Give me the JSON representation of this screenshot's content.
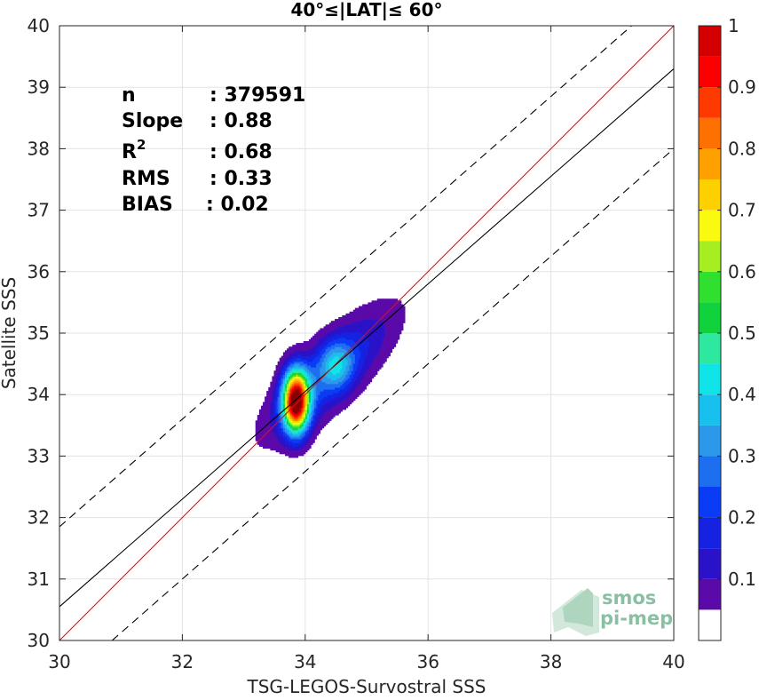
{
  "chart_data": {
    "type": "heatmap",
    "title": "40°≤|LAT|≤ 60°",
    "xlabel": "TSG-LEGOS-Survostral SSS",
    "ylabel": "Satellite SSS",
    "xlim": [
      30,
      40
    ],
    "ylim": [
      30,
      40
    ],
    "x_ticks": [
      "30",
      "32",
      "34",
      "36",
      "38",
      "40"
    ],
    "y_ticks": [
      "30",
      "31",
      "32",
      "33",
      "34",
      "35",
      "36",
      "37",
      "38",
      "39",
      "40"
    ],
    "grid": true,
    "stats": [
      {
        "label": "n",
        "value": ": 379591"
      },
      {
        "label": "Slope",
        "value": ": 0.88"
      },
      {
        "label": "R",
        "sup": "2",
        "value": ": 0.68"
      },
      {
        "label": "RMS",
        "value": ": 0.33"
      },
      {
        "label": "BIAS",
        "value": ": 0.02"
      }
    ],
    "lines": {
      "one_to_one": {
        "slope": 1.0,
        "intercept": 0.0,
        "color": "#ff0000"
      },
      "regression": {
        "slope": 0.875,
        "intercept": 4.3,
        "color": "#000000"
      },
      "bounds_offset": 1.3,
      "bounds_style": "dashed"
    },
    "density_peak": {
      "x": 33.85,
      "y": 33.9,
      "value": 1.0
    },
    "secondary_peak": {
      "x": 34.5,
      "y": 34.5,
      "value": 0.4
    },
    "colorbar": {
      "range": [
        0,
        1
      ],
      "tick_labels": [
        "0.1",
        "0.2",
        "0.3",
        "0.4",
        "0.5",
        "0.6",
        "0.7",
        "0.8",
        "0.9",
        "1"
      ],
      "levels": [
        {
          "v": 0.0,
          "color": "#ffffff"
        },
        {
          "v": 0.05,
          "color": "#5a0aa8"
        },
        {
          "v": 0.1,
          "color": "#2a12c8"
        },
        {
          "v": 0.15,
          "color": "#1522e2"
        },
        {
          "v": 0.2,
          "color": "#0a3cf5"
        },
        {
          "v": 0.25,
          "color": "#1e6ef0"
        },
        {
          "v": 0.3,
          "color": "#2c98ea"
        },
        {
          "v": 0.35,
          "color": "#18c0ee"
        },
        {
          "v": 0.4,
          "color": "#10e4e6"
        },
        {
          "v": 0.45,
          "color": "#2ee8a0"
        },
        {
          "v": 0.5,
          "color": "#10d23c"
        },
        {
          "v": 0.55,
          "color": "#30e030"
        },
        {
          "v": 0.6,
          "color": "#a6ee22"
        },
        {
          "v": 0.65,
          "color": "#fafa10"
        },
        {
          "v": 0.7,
          "color": "#fed000"
        },
        {
          "v": 0.75,
          "color": "#fea000"
        },
        {
          "v": 0.8,
          "color": "#fe7000"
        },
        {
          "v": 0.85,
          "color": "#fe3a00"
        },
        {
          "v": 0.9,
          "color": "#fa0000"
        },
        {
          "v": 0.95,
          "color": "#d40000"
        },
        {
          "v": 1.0,
          "color": "#8a0000"
        }
      ]
    }
  },
  "watermark": {
    "line1": "smos",
    "line2": "pi-mep",
    "color": "#7fb99a"
  }
}
